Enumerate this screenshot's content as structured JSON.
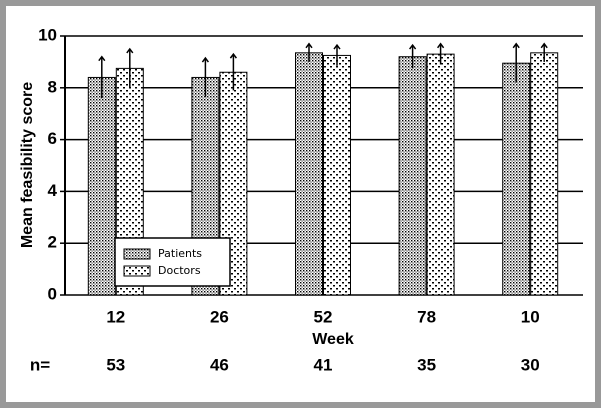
{
  "chart_data": {
    "type": "bar",
    "y_label": "Mean feasibility score",
    "x_label": "Week",
    "categories": [
      "12",
      "26",
      "52",
      "78",
      "10"
    ],
    "n_label": "n=",
    "n_values": [
      53,
      46,
      41,
      35,
      30
    ],
    "series": [
      {
        "name": "Patients",
        "pattern": "fine-dots",
        "color": "#000000",
        "values": [
          8.4,
          8.4,
          9.35,
          9.2,
          8.95
        ],
        "errors": [
          0.8,
          0.75,
          0.35,
          0.45,
          0.75
        ]
      },
      {
        "name": "Doctors",
        "pattern": "coarse-dots",
        "color": "#000000",
        "values": [
          8.75,
          8.6,
          9.25,
          9.3,
          9.35
        ],
        "errors": [
          0.75,
          0.7,
          0.4,
          0.4,
          0.35
        ]
      }
    ],
    "ylim": [
      0,
      10
    ],
    "yticks": [
      0,
      2,
      4,
      6,
      8,
      10
    ],
    "grid": true
  }
}
